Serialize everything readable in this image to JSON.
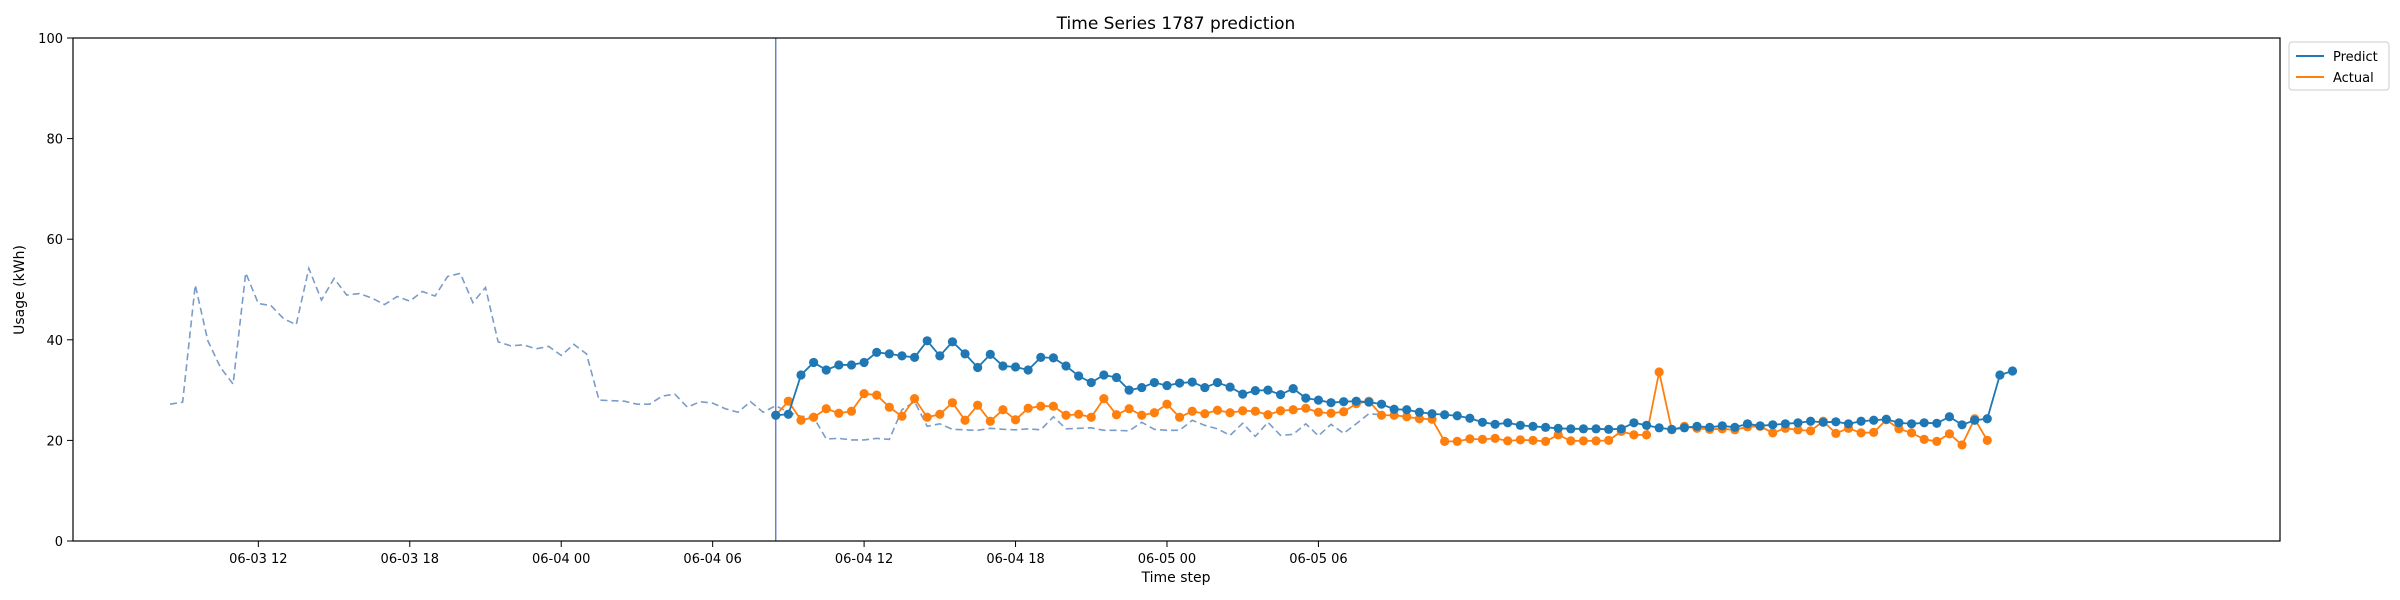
{
  "chart_data": {
    "type": "line",
    "title": "Time Series 1787 prediction",
    "xlabel": "Time step",
    "ylabel": "Usage (kWh)",
    "ylim": [
      0,
      100
    ],
    "yticks": [
      0,
      20,
      40,
      60,
      80,
      100
    ],
    "xticks": [
      "06-03 12",
      "06-03 18",
      "06-04 00",
      "06-04 06",
      "06-04 12",
      "06-04 18",
      "06-05 00",
      "06-05 06"
    ],
    "x_unit": "30-minute step",
    "x_start": "06-03 08:30",
    "forecast_start_step": 48,
    "history": {
      "style": "dashed",
      "values": [
        27.2,
        27.6,
        50.9,
        39.8,
        34.5,
        31.2,
        53.3,
        47.2,
        46.8,
        44.2,
        43.0,
        54.2,
        47.9,
        52.2,
        48.9,
        49.2,
        48.3,
        47.0,
        48.6,
        47.7,
        49.6,
        48.7,
        52.6,
        53.2,
        47.4,
        50.4,
        39.6,
        38.8,
        39.0,
        38.2,
        38.7,
        36.9,
        39.1,
        37.2,
        28.0,
        27.9,
        27.8,
        27.2,
        27.2,
        28.8,
        29.2,
        26.6,
        27.7,
        27.4,
        26.3,
        25.6,
        27.7,
        25.6,
        26.9,
        25.6,
        24.8,
        24.6,
        20.3,
        20.4,
        20.1,
        20.1,
        20.4,
        20.2,
        26.1,
        27.7,
        22.8,
        23.3,
        22.2,
        22.1,
        22.0,
        22.4,
        22.2,
        22.1,
        22.3,
        22.1,
        24.7,
        22.3,
        22.4,
        22.5,
        22.0,
        22.0,
        21.9,
        23.6,
        22.2,
        22.0,
        22.0,
        24.0,
        23.0,
        22.3,
        21.0,
        23.4,
        20.8,
        23.6,
        21.0,
        21.2,
        23.3,
        20.9,
        23.2,
        21.4,
        23.3,
        25.3,
        25.1
      ]
    },
    "series": [
      {
        "name": "Predict",
        "color": "#1f77b4",
        "values": [
          25.0,
          25.2,
          33.0,
          35.5,
          34.0,
          35.0,
          35.0,
          35.5,
          37.5,
          37.2,
          36.8,
          36.5,
          39.8,
          36.8,
          39.6,
          37.2,
          34.5,
          37.1,
          34.8,
          34.6,
          34.0,
          36.5,
          36.4,
          34.8,
          32.8,
          31.5,
          33.0,
          32.5,
          30.0,
          30.5,
          31.5,
          30.9,
          31.4,
          31.6,
          30.5,
          31.5,
          30.6,
          29.2,
          29.9,
          30.0,
          29.1,
          30.3,
          28.4,
          28.0,
          27.5,
          27.7,
          27.8,
          27.6,
          27.2,
          26.2,
          26.1,
          25.6,
          25.3,
          25.1,
          24.9,
          24.4,
          23.6,
          23.2,
          23.5,
          23.0,
          22.8,
          22.6,
          22.4,
          22.3,
          22.3,
          22.3,
          22.2,
          22.3,
          23.5,
          23.0,
          22.5,
          22.2,
          22.5,
          22.8,
          22.6,
          22.9,
          22.6,
          23.3,
          22.9,
          23.1,
          23.3,
          23.5,
          23.8,
          23.6,
          23.7,
          23.3,
          23.8,
          24.0,
          24.2,
          23.5,
          23.3,
          23.5,
          23.4,
          24.7,
          23.1,
          24.0,
          24.3,
          33.0,
          33.8
        ]
      },
      {
        "name": "Actual",
        "color": "#ff7f0e",
        "values": [
          25.0,
          27.8,
          24.0,
          24.6,
          26.3,
          25.4,
          25.8,
          29.3,
          29.0,
          26.6,
          24.8,
          28.3,
          24.6,
          25.2,
          27.5,
          24.0,
          27.0,
          23.8,
          26.1,
          24.1,
          26.4,
          26.8,
          26.8,
          25.0,
          25.2,
          24.6,
          28.3,
          25.1,
          26.3,
          25.0,
          25.5,
          27.2,
          24.6,
          25.8,
          25.3,
          26.0,
          25.5,
          25.9,
          25.8,
          25.1,
          25.9,
          26.1,
          26.4,
          25.6,
          25.4,
          25.7,
          27.3,
          27.8,
          25.0,
          25.0,
          24.7,
          24.3,
          24.2,
          19.8,
          19.8,
          20.3,
          20.2,
          20.4,
          19.9,
          20.1,
          20.0,
          19.8,
          21.1,
          19.9,
          19.9,
          19.9,
          20.0,
          21.8,
          21.1,
          21.1,
          33.6,
          22.1,
          22.8,
          22.4,
          22.2,
          22.3,
          22.1,
          22.7,
          22.8,
          21.5,
          22.4,
          22.1,
          21.9,
          23.8,
          21.4,
          22.4,
          21.5,
          21.6,
          24.1,
          22.3,
          21.5,
          20.2,
          19.8,
          21.3,
          19.1,
          24.3,
          20.0
        ]
      }
    ],
    "legend": {
      "position": "top-right",
      "entries": [
        "Predict",
        "Actual"
      ]
    },
    "grid": false
  }
}
